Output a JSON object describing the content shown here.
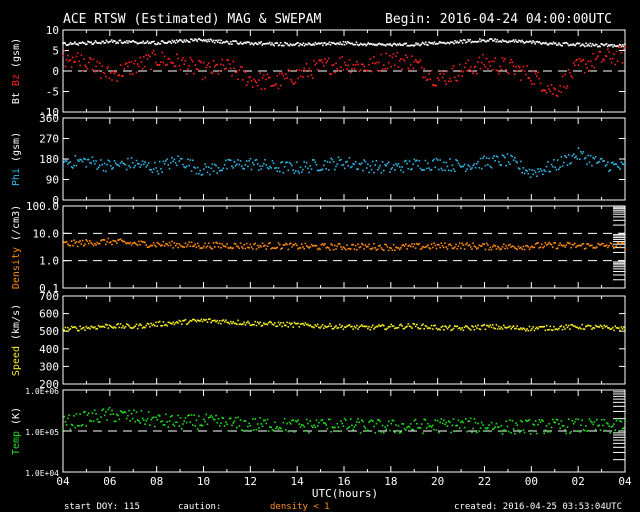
{
  "header": {
    "title": "ACE RTSW (Estimated) MAG & SWEPAM",
    "begin": "Begin: 2016-04-24 04:00:00UTC"
  },
  "xaxis": {
    "ticks": [
      "04",
      "06",
      "08",
      "10",
      "12",
      "14",
      "16",
      "18",
      "20",
      "22",
      "00",
      "02",
      "04"
    ],
    "label": "UTC(hours)"
  },
  "footer": {
    "start_doy": "start DOY: 115",
    "caution": "caution:",
    "density_note": "density < 1",
    "created": "created: 2016-04-25 03:53:04UTC"
  },
  "colors": {
    "white": "#ffffff",
    "red": "#ff2020",
    "cyan": "#30b8e8",
    "orange": "#ff8c10",
    "yellow": "#f4ee20",
    "green": "#20e020",
    "caution_orange": "#ff9020"
  },
  "chart_data": [
    {
      "type": "scatter",
      "panel": "mag",
      "ylabel": "Bt Bz (gsm)",
      "ylabel_parts": [
        {
          "text": "Bt",
          "color": "white"
        },
        {
          "text": "Bz",
          "color": "red"
        },
        {
          "text": "(gsm)",
          "color": "white"
        }
      ],
      "yticks": [
        "10",
        "5",
        "0",
        "-5",
        "-10"
      ],
      "ylim": [
        -10,
        10
      ],
      "reference_lines": [
        0
      ],
      "x": [
        0,
        1,
        2,
        3,
        4,
        5,
        6,
        7,
        8,
        9,
        10,
        11,
        12,
        13,
        14,
        15,
        16,
        17,
        18,
        19,
        20,
        21,
        22,
        23,
        24
      ],
      "series": [
        {
          "name": "Bt",
          "color": "white",
          "values": [
            6.5,
            6.8,
            7.2,
            7.0,
            6.8,
            7.3,
            7.5,
            7.0,
            6.8,
            6.6,
            6.5,
            6.6,
            6.8,
            6.5,
            6.4,
            6.5,
            6.8,
            7.2,
            7.5,
            7.3,
            7.0,
            6.6,
            6.4,
            6.3,
            6.3
          ]
        },
        {
          "name": "Bz",
          "color": "red",
          "values": [
            3,
            2,
            -1,
            1,
            3,
            2,
            0,
            1,
            -2,
            -3,
            -1,
            1,
            2,
            1,
            3,
            2,
            -2,
            0,
            2,
            1,
            -1,
            -5,
            1,
            3,
            4
          ]
        }
      ]
    },
    {
      "type": "scatter",
      "panel": "phi",
      "ylabel": "Phi (gsm)",
      "ylabel_parts": [
        {
          "text": "Phi",
          "color": "cyan"
        },
        {
          "text": "(gsm)",
          "color": "white"
        }
      ],
      "yticks": [
        "360",
        "270",
        "180",
        "90",
        "0"
      ],
      "ylim": [
        0,
        360
      ],
      "x": [
        0,
        1,
        2,
        3,
        4,
        5,
        6,
        7,
        8,
        9,
        10,
        11,
        12,
        13,
        14,
        15,
        16,
        17,
        18,
        19,
        20,
        21,
        22,
        23,
        24
      ],
      "series": [
        {
          "name": "Phi",
          "color": "cyan",
          "values": [
            165,
            170,
            150,
            160,
            140,
            175,
            130,
            150,
            160,
            145,
            140,
            155,
            165,
            150,
            140,
            155,
            160,
            150,
            165,
            175,
            120,
            150,
            200,
            160,
            140
          ]
        }
      ]
    },
    {
      "type": "scatter",
      "panel": "density",
      "ylabel": "Density (/cm3)",
      "ylabel_parts": [
        {
          "text": "Density",
          "color": "orange"
        },
        {
          "text": "(/cm3)",
          "color": "white"
        }
      ],
      "yticks": [
        "100.0",
        "10.0",
        "1.0",
        "0.1"
      ],
      "ylim": [
        0.1,
        100
      ],
      "log_scale": true,
      "reference_lines": [
        10,
        1
      ],
      "x": [
        0,
        1,
        2,
        3,
        4,
        5,
        6,
        7,
        8,
        9,
        10,
        11,
        12,
        13,
        14,
        15,
        16,
        17,
        18,
        19,
        20,
        21,
        22,
        23,
        24
      ],
      "series": [
        {
          "name": "Density",
          "color": "orange",
          "values": [
            4,
            4.5,
            5,
            4.2,
            4,
            3.8,
            3.5,
            3.6,
            3.4,
            3.5,
            3.3,
            3.2,
            3.2,
            3.3,
            3.1,
            3.2,
            3.4,
            3.5,
            3.3,
            3.2,
            3.4,
            3.6,
            3.5,
            3.5,
            3.6
          ]
        }
      ]
    },
    {
      "type": "scatter",
      "panel": "speed",
      "ylabel": "Speed (km/s)",
      "ylabel_parts": [
        {
          "text": "Speed",
          "color": "yellow"
        },
        {
          "text": "(km/s)",
          "color": "white"
        }
      ],
      "yticks": [
        "700",
        "600",
        "500",
        "400",
        "300",
        "200"
      ],
      "ylim": [
        200,
        700
      ],
      "x": [
        0,
        1,
        2,
        3,
        4,
        5,
        6,
        7,
        8,
        9,
        10,
        11,
        12,
        13,
        14,
        15,
        16,
        17,
        18,
        19,
        20,
        21,
        22,
        23,
        24
      ],
      "series": [
        {
          "name": "Speed",
          "color": "yellow",
          "values": [
            510,
            520,
            530,
            525,
            540,
            550,
            560,
            555,
            545,
            540,
            535,
            530,
            525,
            520,
            525,
            530,
            520,
            515,
            525,
            520,
            515,
            520,
            525,
            520,
            515
          ]
        }
      ]
    },
    {
      "type": "scatter",
      "panel": "temp",
      "ylabel": "Temp (K)",
      "ylabel_parts": [
        {
          "text": "Temp",
          "color": "green"
        },
        {
          "text": "(K)",
          "color": "white"
        }
      ],
      "yticks": [
        "1.0E+06",
        "1.0E+05",
        "1.0E+04"
      ],
      "ylim": [
        10000,
        1000000
      ],
      "log_scale": true,
      "reference_lines": [
        100000
      ],
      "x": [
        0,
        1,
        2,
        3,
        4,
        5,
        6,
        7,
        8,
        9,
        10,
        11,
        12,
        13,
        14,
        15,
        16,
        17,
        18,
        19,
        20,
        21,
        22,
        23,
        24
      ],
      "series": [
        {
          "name": "Temp",
          "color": "green",
          "values": [
            150000,
            200000,
            250000,
            220000,
            180000,
            160000,
            170000,
            150000,
            140000,
            145000,
            130000,
            140000,
            135000,
            130000,
            125000,
            130000,
            135000,
            140000,
            130000,
            125000,
            128000,
            130000,
            132000,
            128000,
            130000
          ]
        }
      ]
    }
  ]
}
